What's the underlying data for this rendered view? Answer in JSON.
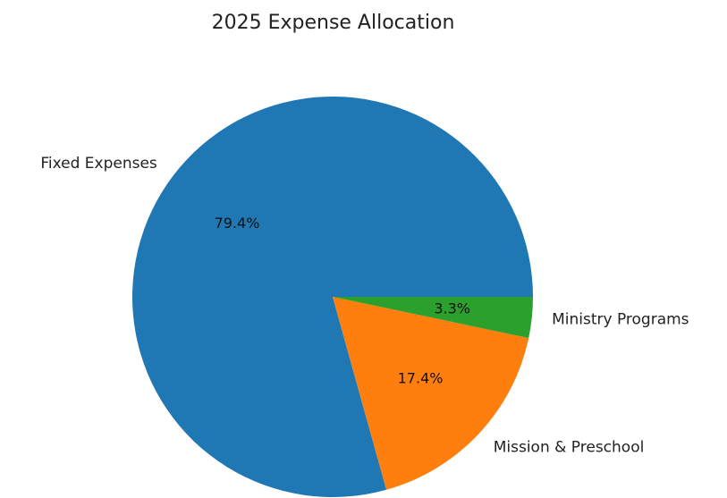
{
  "chart_data": {
    "type": "pie",
    "title": "2025 Expense Allocation",
    "slices": [
      {
        "label": "Fixed Expenses",
        "value": 79.4,
        "pct_label": "79.4%",
        "color": "#1f77b4"
      },
      {
        "label": "Mission & Preschool",
        "value": 17.4,
        "pct_label": "17.4%",
        "color": "#ff7f0e"
      },
      {
        "label": "Ministry Programs",
        "value": 3.3,
        "pct_label": "3.3%",
        "color": "#2ca02c"
      }
    ],
    "start_angle_deg": 0,
    "direction": "counterclockwise",
    "legend": "none"
  }
}
